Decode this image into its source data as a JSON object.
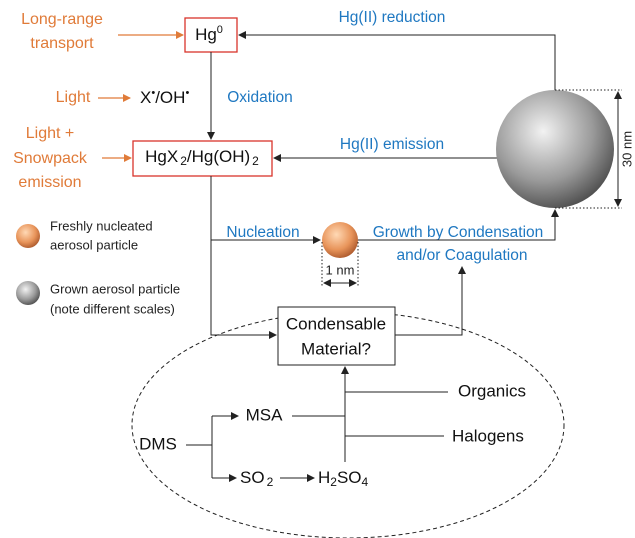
{
  "sources": {
    "long_range": [
      "Long-range",
      "transport"
    ],
    "light": "Light",
    "light_snowpack": [
      "Light +",
      "Snowpack",
      "emission"
    ]
  },
  "nodes": {
    "hg0": {
      "base": "Hg",
      "sup": "0"
    },
    "radical": [
      "X",
      "•",
      "/OH",
      "•"
    ],
    "hgx2": [
      "HgX",
      "2",
      "/Hg(OH)",
      "2"
    ],
    "condensable": [
      "Condensable",
      "Material?"
    ],
    "dms": "DMS",
    "msa": "MSA",
    "so2": [
      "SO",
      "2"
    ],
    "h2so4": [
      "H",
      "2",
      "SO",
      "4"
    ],
    "organics": "Organics",
    "halogens": "Halogens"
  },
  "processes": {
    "reduction": "Hg(II) reduction",
    "oxidation": "Oxidation",
    "emission": "Hg(II) emission",
    "nucleation": "Nucleation",
    "growth": [
      "Growth by Condensation",
      "and/or Coagulation"
    ]
  },
  "scales": {
    "small": "1 nm",
    "large": "30 nm"
  },
  "legend": [
    {
      "label": [
        "Freshly nucleated",
        "aerosol particle"
      ]
    },
    {
      "label": [
        "Grown aerosol particle",
        "(note different scales)"
      ]
    }
  ]
}
